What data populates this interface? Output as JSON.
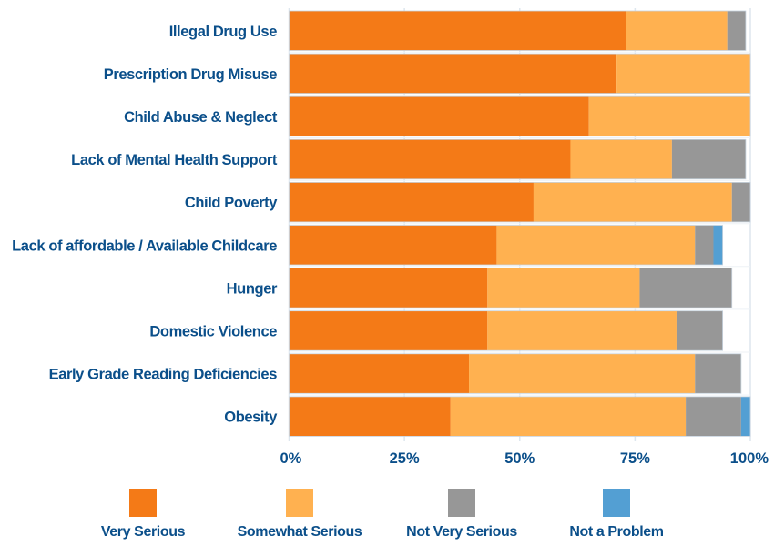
{
  "chart_data": {
    "type": "bar",
    "orientation": "horizontal",
    "stacked": true,
    "title": "",
    "xlabel": "",
    "ylabel": "",
    "xlim": [
      0,
      100
    ],
    "x_ticks": [
      "0%",
      "25%",
      "50%",
      "75%",
      "100%"
    ],
    "x_tick_values": [
      0,
      25,
      50,
      75,
      100
    ],
    "grid": true,
    "legend_position": "bottom",
    "categories": [
      "Illegal Drug Use",
      "Prescription Drug Misuse",
      "Child Abuse & Neglect",
      "Lack of Mental Health Support",
      "Child Poverty",
      "Lack of affordable / Available Childcare",
      "Hunger",
      "Domestic Violence",
      "Early Grade Reading Deficiencies",
      "Obesity"
    ],
    "series": [
      {
        "name": "Very Serious",
        "color": "#f47a17",
        "values": [
          73,
          71,
          65,
          61,
          53,
          45,
          43,
          43,
          39,
          35
        ]
      },
      {
        "name": "Somewhat Serious",
        "color": "#ffb150",
        "values": [
          22,
          29,
          35,
          22,
          43,
          43,
          33,
          41,
          49,
          51
        ]
      },
      {
        "name": "Not Very Serious",
        "color": "#979797",
        "values": [
          4,
          0,
          0,
          16,
          4,
          4,
          20,
          10,
          10,
          12
        ]
      },
      {
        "name": "Not a Problem",
        "color": "#539fd3",
        "values": [
          0,
          0,
          0,
          0,
          0,
          2,
          0,
          0,
          0,
          2
        ]
      }
    ]
  },
  "colors": {
    "text": "#0b4f8a",
    "grid": "#dde6ee"
  }
}
